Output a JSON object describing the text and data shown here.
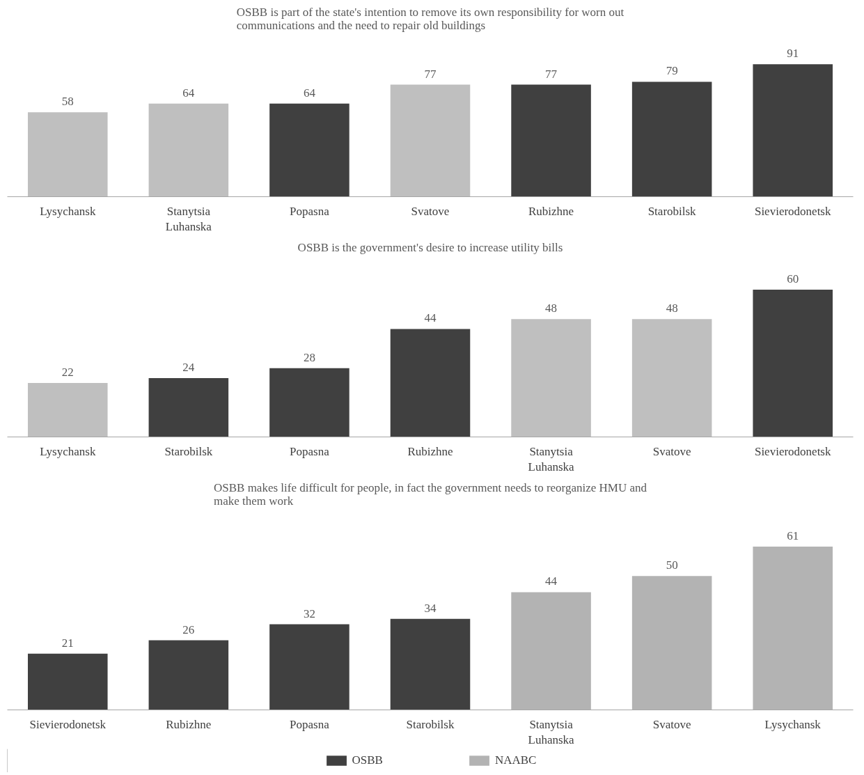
{
  "chart_data": [
    {
      "type": "bar",
      "title": "OSBB is part of the state's intention to remove its own responsibility for worn out communications and the need to repair old buildings",
      "categories": [
        "Lysychansk",
        "Stanytsia Luhanska",
        "Popasna",
        "Svatove",
        "Rubizhne",
        "Starobilsk",
        "Sievierodonetsk"
      ],
      "stacked": true,
      "data_labels": true,
      "grid": false,
      "series": [
        {
          "color": "#404040",
          "values": [
            null,
            null,
            64,
            null,
            77,
            79,
            91
          ]
        },
        {
          "color": "#bfbfbf",
          "values": [
            58,
            64,
            null,
            77,
            null,
            null,
            null
          ]
        }
      ]
    },
    {
      "type": "bar",
      "title": "OSBB is the government's desire to increase utility bills",
      "categories": [
        "Lysychansk",
        "Starobilsk",
        "Popasna",
        "Rubizhne",
        "Stanytsia Luhanska",
        "Svatove",
        "Sievierodonetsk"
      ],
      "stacked": true,
      "data_labels": true,
      "grid": false,
      "series": [
        {
          "color": "#404040",
          "values": [
            null,
            24,
            28,
            44,
            null,
            null,
            60
          ]
        },
        {
          "color": "#bfbfbf",
          "values": [
            22,
            null,
            null,
            null,
            48,
            48,
            null
          ]
        }
      ]
    },
    {
      "type": "bar",
      "title": "OSBB makes life difficult for people, in fact the government needs to reorganize HMU and make them work",
      "categories": [
        "Sievierodonetsk",
        "Rubizhne",
        "Popasna",
        "Starobilsk",
        "Stanytsia Luhanska",
        "Svatove",
        "Lysychansk"
      ],
      "stacked": true,
      "data_labels": true,
      "grid": false,
      "legend": "bottom",
      "series": [
        {
          "name": "OSBB",
          "color": "#404040",
          "values": [
            21,
            26,
            32,
            34,
            null,
            null,
            null
          ]
        },
        {
          "name": "NAABC",
          "color": "#b3b3b3",
          "values": [
            null,
            null,
            null,
            null,
            44,
            50,
            61
          ]
        }
      ]
    }
  ]
}
